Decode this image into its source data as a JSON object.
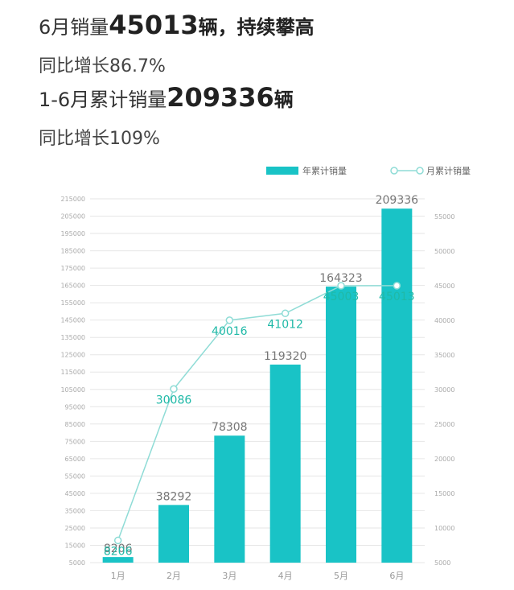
{
  "headlines": {
    "line1_prefix": "6月销量",
    "line1_number": "45013",
    "line1_unit": "辆",
    "line1_suffix": "，持续攀高",
    "line2": "同比增长86.7%",
    "line3_prefix": "1-6月累计销量",
    "line3_number": "209336",
    "line3_unit": "辆",
    "line4": "同比增长109%"
  },
  "colors": {
    "bar": "#19c3c6",
    "line": "#8fdcd6",
    "label_line": "#1fb9a7",
    "label_bar": "#777777",
    "grid": "#e6e6e6",
    "tick": "#aaaaaa"
  },
  "chart_data": {
    "type": "bar",
    "categories": [
      "1月",
      "2月",
      "3月",
      "4月",
      "5月",
      "6月"
    ],
    "series": [
      {
        "name": "年累计销量",
        "type": "bar",
        "axis": "left",
        "values": [
          8206,
          38292,
          78308,
          119320,
          164323,
          209336
        ]
      },
      {
        "name": "月累计销量",
        "type": "line",
        "axis": "right",
        "values": [
          8206,
          30086,
          40016,
          41012,
          45003,
          45013
        ]
      }
    ],
    "y_left": {
      "range": [
        5000,
        215000
      ],
      "ticks": [
        "5000",
        "15000",
        "25000",
        "35000",
        "45000",
        "55000",
        "65000",
        "75000",
        "85000",
        "95000",
        "105000",
        "115000",
        "125000",
        "135000",
        "145000",
        "155000",
        "165000",
        "175000",
        "185000",
        "195000",
        "205000",
        "215000"
      ]
    },
    "y_right": {
      "range": [
        5000,
        55000
      ],
      "ticks": [
        "5000",
        "10000",
        "15000",
        "20000",
        "25000",
        "30000",
        "35000",
        "40000",
        "45000",
        "50000",
        "55000"
      ]
    },
    "legend_position": "top-right",
    "grid": true
  }
}
